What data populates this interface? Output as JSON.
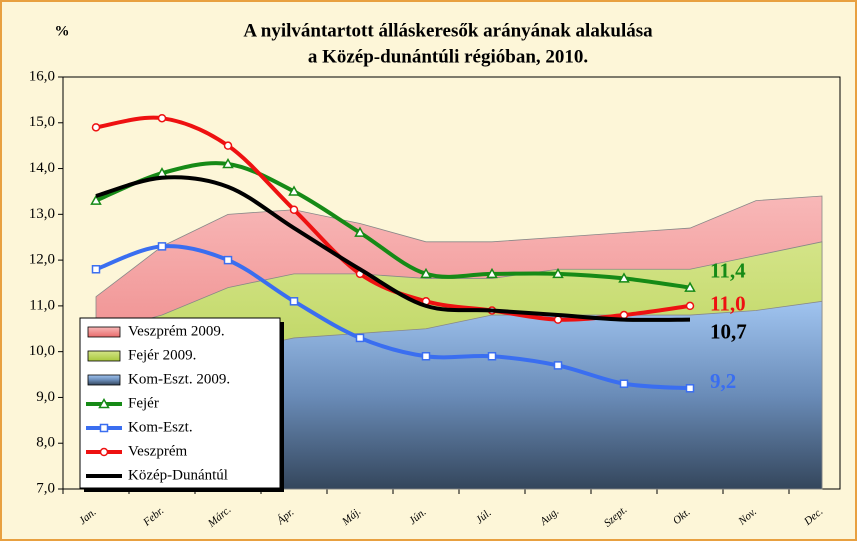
{
  "chart_data": {
    "type": "line",
    "title": [
      "A nyilvántartott álláskeresők arányának alakulása",
      "a Közép-dunántúli régióban, 2010."
    ],
    "y_label": "%",
    "categories": [
      "Jan.",
      "Febr.",
      "Márc.",
      "Ápr.",
      "Máj.",
      "Jún.",
      "Júl.",
      "Aug.",
      "Szept.",
      "Okt.",
      "Nov.",
      "Dec."
    ],
    "ylim": [
      7,
      16
    ],
    "yticks": [
      {
        "value": 7,
        "label": "7,0"
      },
      {
        "value": 8,
        "label": "8,0"
      },
      {
        "value": 9,
        "label": "9,0"
      },
      {
        "value": 10,
        "label": "10,0"
      },
      {
        "value": 11,
        "label": "11,0"
      },
      {
        "value": 12,
        "label": "12,0"
      },
      {
        "value": 13,
        "label": "13,0"
      },
      {
        "value": 14,
        "label": "14,0"
      },
      {
        "value": 15,
        "label": "15,0"
      },
      {
        "value": 16,
        "label": "16,0"
      }
    ],
    "grid": false,
    "legend": "lower left",
    "series": [
      {
        "name": "Veszprém 2009.",
        "kind": "area",
        "color": "#f4a0a0",
        "values": [
          11.2,
          12.3,
          13.0,
          13.1,
          12.8,
          12.4,
          12.4,
          12.5,
          12.6,
          12.7,
          13.3,
          13.4
        ]
      },
      {
        "name": "Fejér 2009.",
        "kind": "area",
        "color": "#c8dc6c",
        "values": [
          10.4,
          10.8,
          11.4,
          11.7,
          11.7,
          11.6,
          11.6,
          11.8,
          11.8,
          11.8,
          12.1,
          12.4
        ]
      },
      {
        "name": "Kom-Eszt. 2009.",
        "kind": "area",
        "color": "#8fb4e4",
        "values": [
          9.6,
          9.8,
          10.0,
          10.3,
          10.4,
          10.5,
          10.8,
          10.8,
          10.8,
          10.8,
          10.9,
          11.1
        ]
      },
      {
        "name": "Fejér",
        "kind": "line",
        "marker": "triangle",
        "color": "#168a16",
        "values": [
          13.3,
          13.9,
          14.1,
          13.5,
          12.6,
          11.7,
          11.7,
          11.7,
          11.6,
          11.4,
          null,
          null
        ],
        "value_labels": [
          null,
          null,
          null,
          null,
          null,
          null,
          null,
          null,
          null,
          "11,4",
          null,
          null
        ]
      },
      {
        "name": "Kom-Eszt.",
        "kind": "line",
        "marker": "square",
        "color": "#3a6ef0",
        "values": [
          11.8,
          12.3,
          12.0,
          11.1,
          10.3,
          9.9,
          9.9,
          9.7,
          9.3,
          9.2,
          null,
          null
        ],
        "value_labels": [
          null,
          null,
          null,
          null,
          null,
          null,
          null,
          null,
          null,
          "9,2",
          null,
          null
        ]
      },
      {
        "name": "Veszprém",
        "kind": "line",
        "marker": "circle",
        "color": "#ee1111",
        "values": [
          14.9,
          15.1,
          14.5,
          13.1,
          11.7,
          11.1,
          10.9,
          10.7,
          10.8,
          11.0,
          null,
          null
        ],
        "value_labels": [
          null,
          null,
          null,
          null,
          null,
          null,
          null,
          null,
          null,
          "11,0",
          null,
          null
        ]
      },
      {
        "name": "Közép-Dunántúl",
        "kind": "line",
        "marker": "none",
        "color": "#000000",
        "values": [
          13.4,
          13.8,
          13.6,
          12.7,
          11.8,
          11.0,
          10.9,
          10.8,
          10.7,
          10.7,
          null,
          null
        ],
        "value_labels": [
          null,
          null,
          null,
          null,
          null,
          null,
          null,
          null,
          null,
          "10,7",
          null,
          null
        ]
      }
    ]
  }
}
